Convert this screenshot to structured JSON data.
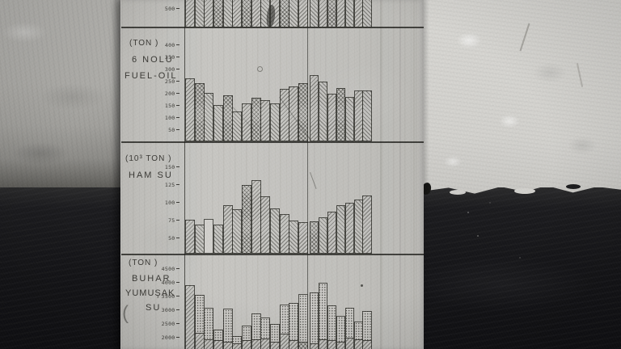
{
  "scene": {
    "description": "Photograph of a wooden board with four hand-drawn monthly bar charts, leaning against a wall that is white plaster above and dark below"
  },
  "colors": {
    "board": "#c6c5c1",
    "ink": "#3a3935",
    "wall_light": "#d6d5d1",
    "wall_left": "#aeada9",
    "wall_dark": "#141417"
  },
  "chart_data": [
    {
      "type": "bar",
      "title": "",
      "unit": "",
      "note": "Topmost chart is cropped by the image edge; only the lower portions of 20 hatched bars are visible",
      "yticks": [
        "500"
      ],
      "bar_count": 20,
      "values": [],
      "cropped_top": true,
      "x_axis_note": "20 unlabeled monthly bars, heavier vertical rule after bar 13"
    },
    {
      "type": "bar",
      "title": "6 Nolu Fuel-Oil",
      "unit": "(TON )",
      "title_lines": [
        "6 NOLU",
        "FUEL-OIL"
      ],
      "ylabel": "TON",
      "yticks": [
        "400",
        "350",
        "300",
        "250",
        "200",
        "150",
        "100",
        "50"
      ],
      "ylim": [
        0,
        430
      ],
      "bar_count": 20,
      "values": [
        262,
        242,
        202,
        152,
        195,
        126,
        159,
        185,
        175,
        159,
        219,
        229,
        242,
        278,
        250,
        200,
        223,
        187,
        213,
        213
      ],
      "x_axis_note": "20 unlabeled monthly bars, heavier vertical rule after bar 13"
    },
    {
      "type": "bar",
      "title": "Ham Su",
      "unit": "(10³ TON )",
      "title_lines": [
        "HAM SU"
      ],
      "ylabel": "10³ TON",
      "yticks": [
        "150",
        "125",
        "100",
        "75",
        "50"
      ],
      "ylim": [
        25,
        160
      ],
      "bar_count": 20,
      "values": [
        76,
        69,
        77,
        69,
        97,
        91,
        125,
        132,
        109,
        92,
        84,
        75,
        73,
        74,
        80,
        87,
        97,
        100,
        105,
        110
      ],
      "x_axis_note": "20 unlabeled monthly bars, heavier vertical rule after bar 13"
    },
    {
      "type": "bar",
      "title": "Buhar Yumuşak Su",
      "unit": "(TON )",
      "title_lines": [
        "BUHAR",
        "YUMUŞAK",
        "SU"
      ],
      "ylabel": "TON",
      "yticks": [
        "4500",
        "4000",
        "3500",
        "3000",
        "2500",
        "2000"
      ],
      "ylim": [
        1600,
        4700
      ],
      "bar_count": 20,
      "stacked": true,
      "series": [
        {
          "name": "lower-hatched-segment",
          "values": [
            3900,
            2180,
            1940,
            1900,
            1850,
            1800,
            1900,
            1950,
            1980,
            1850,
            2150,
            1900,
            1850,
            1800,
            1950,
            1900,
            1850,
            2000,
            1950,
            1900
          ]
        },
        {
          "name": "total-with-stippled-top",
          "values": [
            3900,
            3550,
            3100,
            2300,
            3060,
            2050,
            2450,
            2880,
            2740,
            2500,
            3210,
            3260,
            3600,
            3650,
            4000,
            3180,
            2780,
            3080,
            2580,
            2970
          ]
        }
      ],
      "note": "Stacked bars: lower segment diagonal-hatched, upper segment stippled; baseline cropped by bottom image edge",
      "x_axis_note": "20 unlabeled monthly bars, heavier vertical rule after bar 13"
    }
  ]
}
